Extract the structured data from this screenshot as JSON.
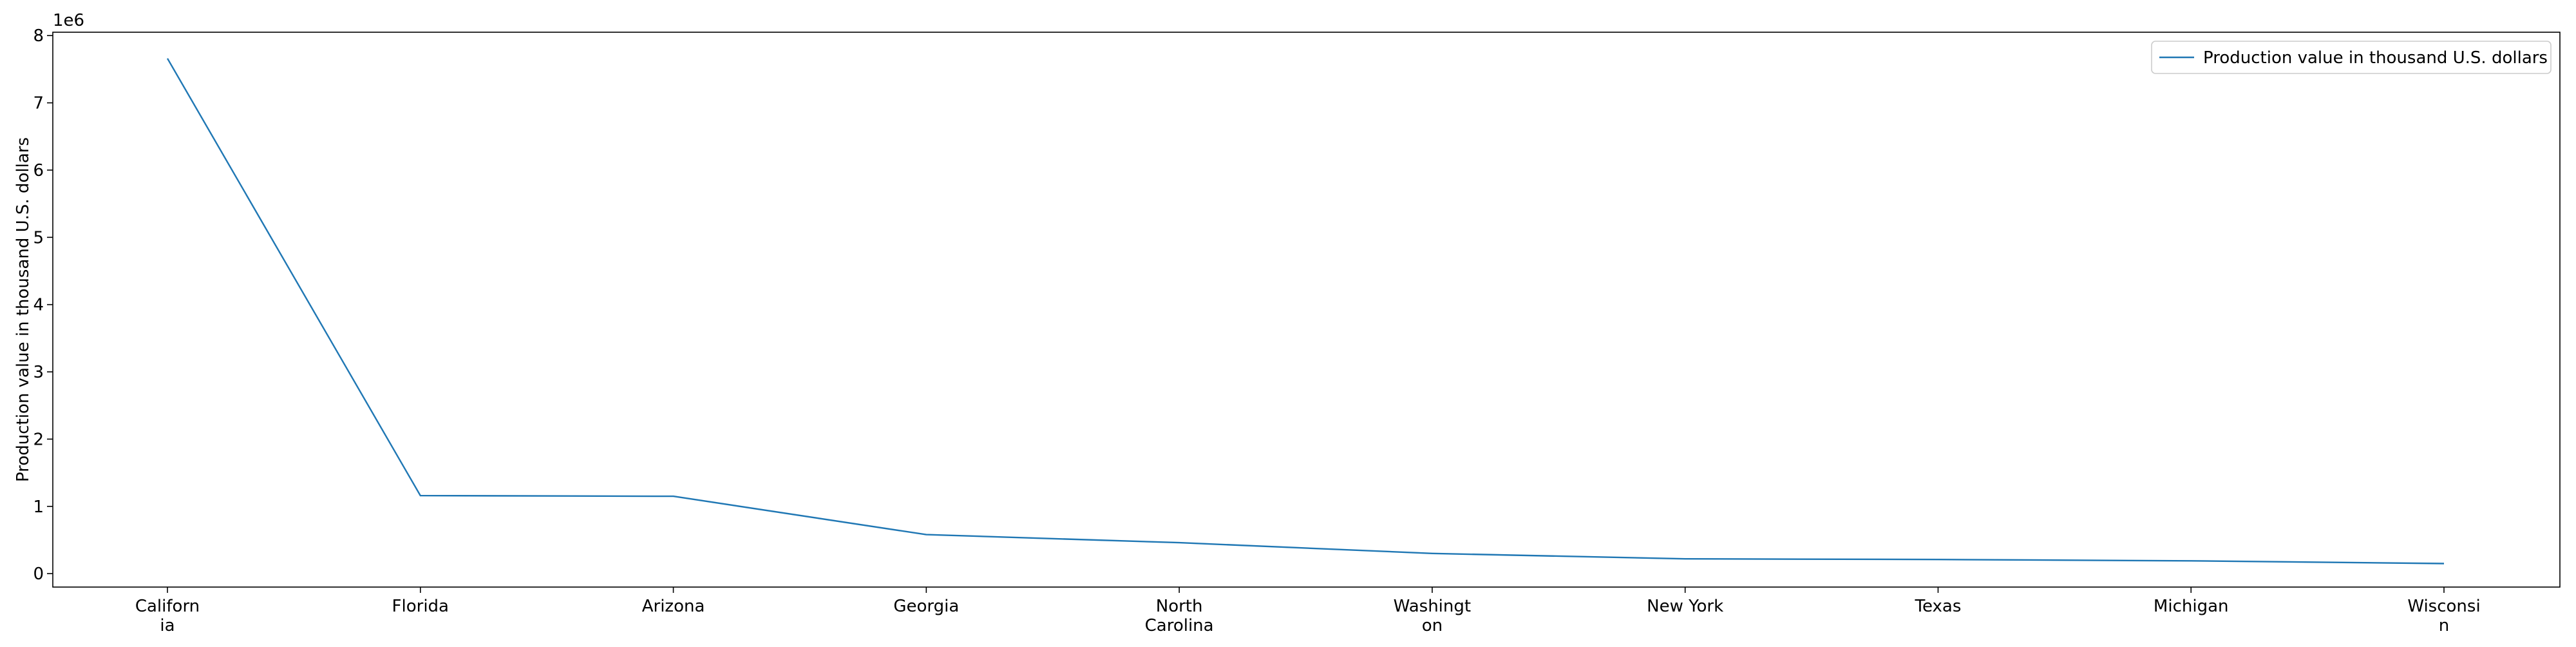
{
  "chart_data": {
    "type": "line",
    "title": "",
    "xlabel": "",
    "ylabel": "Production value in thousand U.S. dollars",
    "y_offset_label": "1e6",
    "categories": [
      [
        "Californ",
        "ia"
      ],
      [
        "Florida"
      ],
      [
        "Arizona"
      ],
      [
        "Georgia"
      ],
      [
        "North",
        "Carolina"
      ],
      [
        "Washingt",
        "on"
      ],
      [
        "New York"
      ],
      [
        "Texas"
      ],
      [
        "Michigan"
      ],
      [
        "Wisconsi",
        "n"
      ]
    ],
    "series": [
      {
        "name": "Production value in thousand U.S. dollars",
        "color": "#1f77b4",
        "values": [
          7660000,
          1160000,
          1150000,
          580000,
          460000,
          300000,
          220000,
          210000,
          190000,
          150000
        ]
      }
    ],
    "ylim": [
      -200000,
      8050000
    ],
    "yticks": [
      0,
      1000000,
      2000000,
      3000000,
      4000000,
      5000000,
      6000000,
      7000000,
      8000000
    ],
    "ytick_labels": [
      "0",
      "1",
      "2",
      "3",
      "4",
      "5",
      "6",
      "7",
      "8"
    ],
    "grid": false,
    "legend_position": "top-right"
  }
}
